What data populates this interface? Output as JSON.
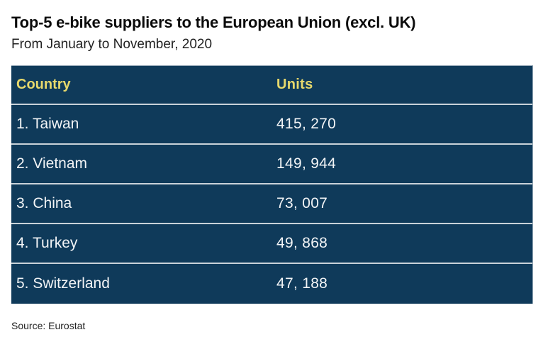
{
  "header": {
    "title": "Top-5 e-bike suppliers to the European Union (excl. UK)",
    "subtitle": "From January to November, 2020"
  },
  "table": {
    "columns": [
      "Country",
      "Units"
    ],
    "rows": [
      {
        "country": "1. Taiwan",
        "units": "415, 270"
      },
      {
        "country": "2. Vietnam",
        "units": "149, 944"
      },
      {
        "country": "3. China",
        "units": "73, 007"
      },
      {
        "country": "4. Turkey",
        "units": "49, 868"
      },
      {
        "country": "5. Switzerland",
        "units": "47, 188"
      }
    ]
  },
  "footer": {
    "source": "Source: Eurostat"
  },
  "colors": {
    "table_background": "#0f3a5a",
    "header_text": "#e6d86c",
    "cell_text": "#f2f4f6",
    "row_divider": "#c9d2d9"
  },
  "chart_data": {
    "type": "table",
    "title": "Top-5 e-bike suppliers to the European Union (excl. UK)",
    "subtitle": "From January to November, 2020",
    "columns": [
      "Country",
      "Units"
    ],
    "categories": [
      "Taiwan",
      "Vietnam",
      "China",
      "Turkey",
      "Switzerland"
    ],
    "values": [
      415270,
      149944,
      73007,
      49868,
      47188
    ],
    "source": "Source: Eurostat"
  }
}
